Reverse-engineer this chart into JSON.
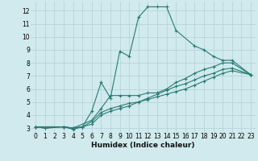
{
  "xlabel": "Humidex (Indice chaleur)",
  "background_color": "#d0eaed",
  "grid_color": "#b8d4d8",
  "line_color": "#2a7a72",
  "xlim": [
    -0.5,
    23.5
  ],
  "ylim": [
    2.7,
    12.7
  ],
  "xticks": [
    0,
    1,
    2,
    3,
    4,
    5,
    6,
    7,
    8,
    9,
    10,
    11,
    12,
    13,
    14,
    15,
    16,
    17,
    18,
    19,
    20,
    21,
    22,
    23
  ],
  "yticks": [
    3,
    4,
    5,
    6,
    7,
    8,
    9,
    10,
    11,
    12
  ],
  "series": [
    {
      "x": [
        0,
        1,
        3,
        4,
        5,
        6,
        7,
        8,
        9,
        10,
        11,
        12,
        13,
        14,
        15,
        17,
        18,
        19,
        20,
        21,
        23
      ],
      "y": [
        3.1,
        3.0,
        3.1,
        2.9,
        3.1,
        4.3,
        6.5,
        5.3,
        8.9,
        8.5,
        11.5,
        12.3,
        12.3,
        12.3,
        10.5,
        9.3,
        9.0,
        8.5,
        8.2,
        8.2,
        7.1
      ]
    },
    {
      "x": [
        0,
        3,
        4,
        6,
        7,
        8,
        9,
        10,
        11,
        12,
        13,
        14,
        15,
        16,
        17,
        18,
        19,
        20,
        21,
        23
      ],
      "y": [
        3.1,
        3.1,
        3.0,
        3.6,
        4.5,
        5.5,
        5.5,
        5.5,
        5.5,
        5.7,
        5.7,
        6.0,
        6.5,
        6.8,
        7.2,
        7.5,
        7.7,
        8.0,
        8.0,
        7.1
      ]
    },
    {
      "x": [
        0,
        3,
        4,
        5,
        6,
        7,
        8,
        9,
        10,
        11,
        12,
        13,
        14,
        15,
        16,
        17,
        18,
        19,
        20,
        21,
        23
      ],
      "y": [
        3.1,
        3.1,
        3.0,
        3.1,
        3.5,
        4.2,
        4.5,
        4.7,
        4.9,
        5.0,
        5.2,
        5.4,
        5.6,
        5.8,
        6.0,
        6.3,
        6.6,
        6.9,
        7.2,
        7.4,
        7.1
      ]
    },
    {
      "x": [
        0,
        1,
        3,
        4,
        5,
        6,
        7,
        8,
        9,
        10,
        11,
        12,
        13,
        14,
        15,
        16,
        17,
        18,
        19,
        20,
        21,
        23
      ],
      "y": [
        3.1,
        3.0,
        3.1,
        3.0,
        3.1,
        3.3,
        4.0,
        4.3,
        4.5,
        4.7,
        5.0,
        5.3,
        5.6,
        5.9,
        6.2,
        6.4,
        6.7,
        7.0,
        7.2,
        7.5,
        7.6,
        7.1
      ]
    }
  ]
}
